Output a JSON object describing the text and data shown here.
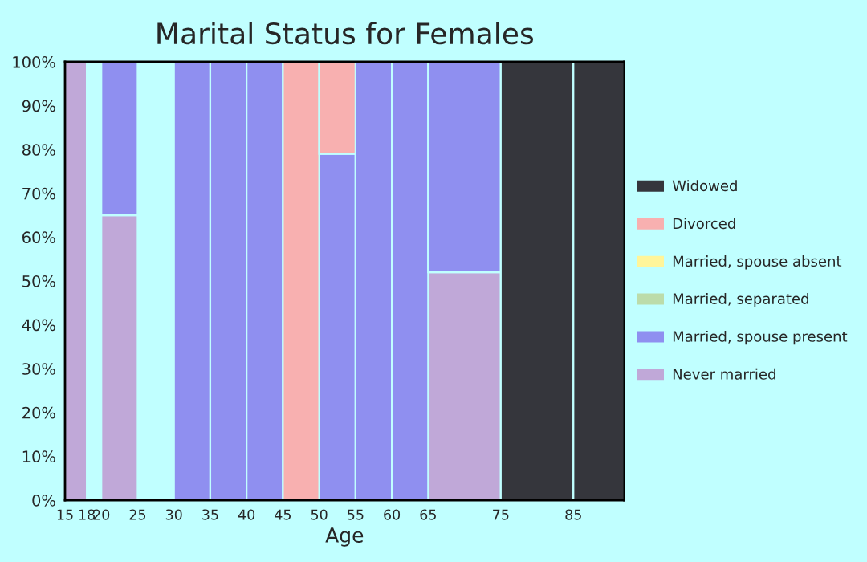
{
  "chart_data": {
    "type": "bar",
    "stacked": true,
    "title": "Marital Status for Females",
    "xlabel": "Age",
    "x": [
      16.5,
      19,
      22.5,
      27.5,
      32.5,
      37.5,
      42.5,
      47.5,
      52.5,
      57.5,
      62.5,
      70,
      80,
      88.5
    ],
    "xlim": [
      15,
      92
    ],
    "xticks": [
      15,
      18,
      20,
      25,
      30,
      35,
      40,
      45,
      50,
      55,
      60,
      65,
      75,
      85
    ],
    "ylim": [
      0,
      100
    ],
    "yticks": [
      {
        "value": 0,
        "label": "0%"
      },
      {
        "value": 10,
        "label": "10%"
      },
      {
        "value": 20,
        "label": "20%"
      },
      {
        "value": 30,
        "label": "30%"
      },
      {
        "value": 40,
        "label": "40%"
      },
      {
        "value": 50,
        "label": "50%"
      },
      {
        "value": 60,
        "label": "60%"
      },
      {
        "value": 70,
        "label": "70%"
      },
      {
        "value": 80,
        "label": "80%"
      },
      {
        "value": 90,
        "label": "90%"
      },
      {
        "value": 100,
        "label": "100%"
      }
    ],
    "grid": false,
    "legend": "right",
    "series": [
      {
        "name": "Never married",
        "color": "#c0a8d8",
        "values": [
          100,
          null,
          65,
          null,
          0,
          0,
          0,
          0,
          0,
          0,
          0,
          52,
          0,
          0
        ]
      },
      {
        "name": "Married, spouse present",
        "color": "#8f8ff0",
        "values": [
          0,
          null,
          35,
          null,
          100,
          100,
          100,
          0,
          79,
          100,
          100,
          48,
          0,
          0
        ]
      },
      {
        "name": "Married, separated",
        "color": "#bcdcaa",
        "values": [
          0,
          null,
          0,
          null,
          0,
          0,
          0,
          0,
          0,
          0,
          0,
          0,
          0,
          0
        ]
      },
      {
        "name": "Married, spouse absent",
        "color": "#fff59a",
        "values": [
          0,
          null,
          0,
          null,
          0,
          0,
          0,
          0,
          0,
          0,
          0,
          0,
          0,
          0
        ]
      },
      {
        "name": "Divorced",
        "color": "#f8b0b0",
        "values": [
          0,
          null,
          0,
          null,
          0,
          0,
          0,
          100,
          21,
          0,
          0,
          0,
          0,
          0
        ]
      },
      {
        "name": "Widowed",
        "color": "#35363c",
        "values": [
          0,
          null,
          0,
          null,
          0,
          0,
          0,
          0,
          0,
          0,
          0,
          0,
          100,
          100
        ]
      }
    ]
  }
}
